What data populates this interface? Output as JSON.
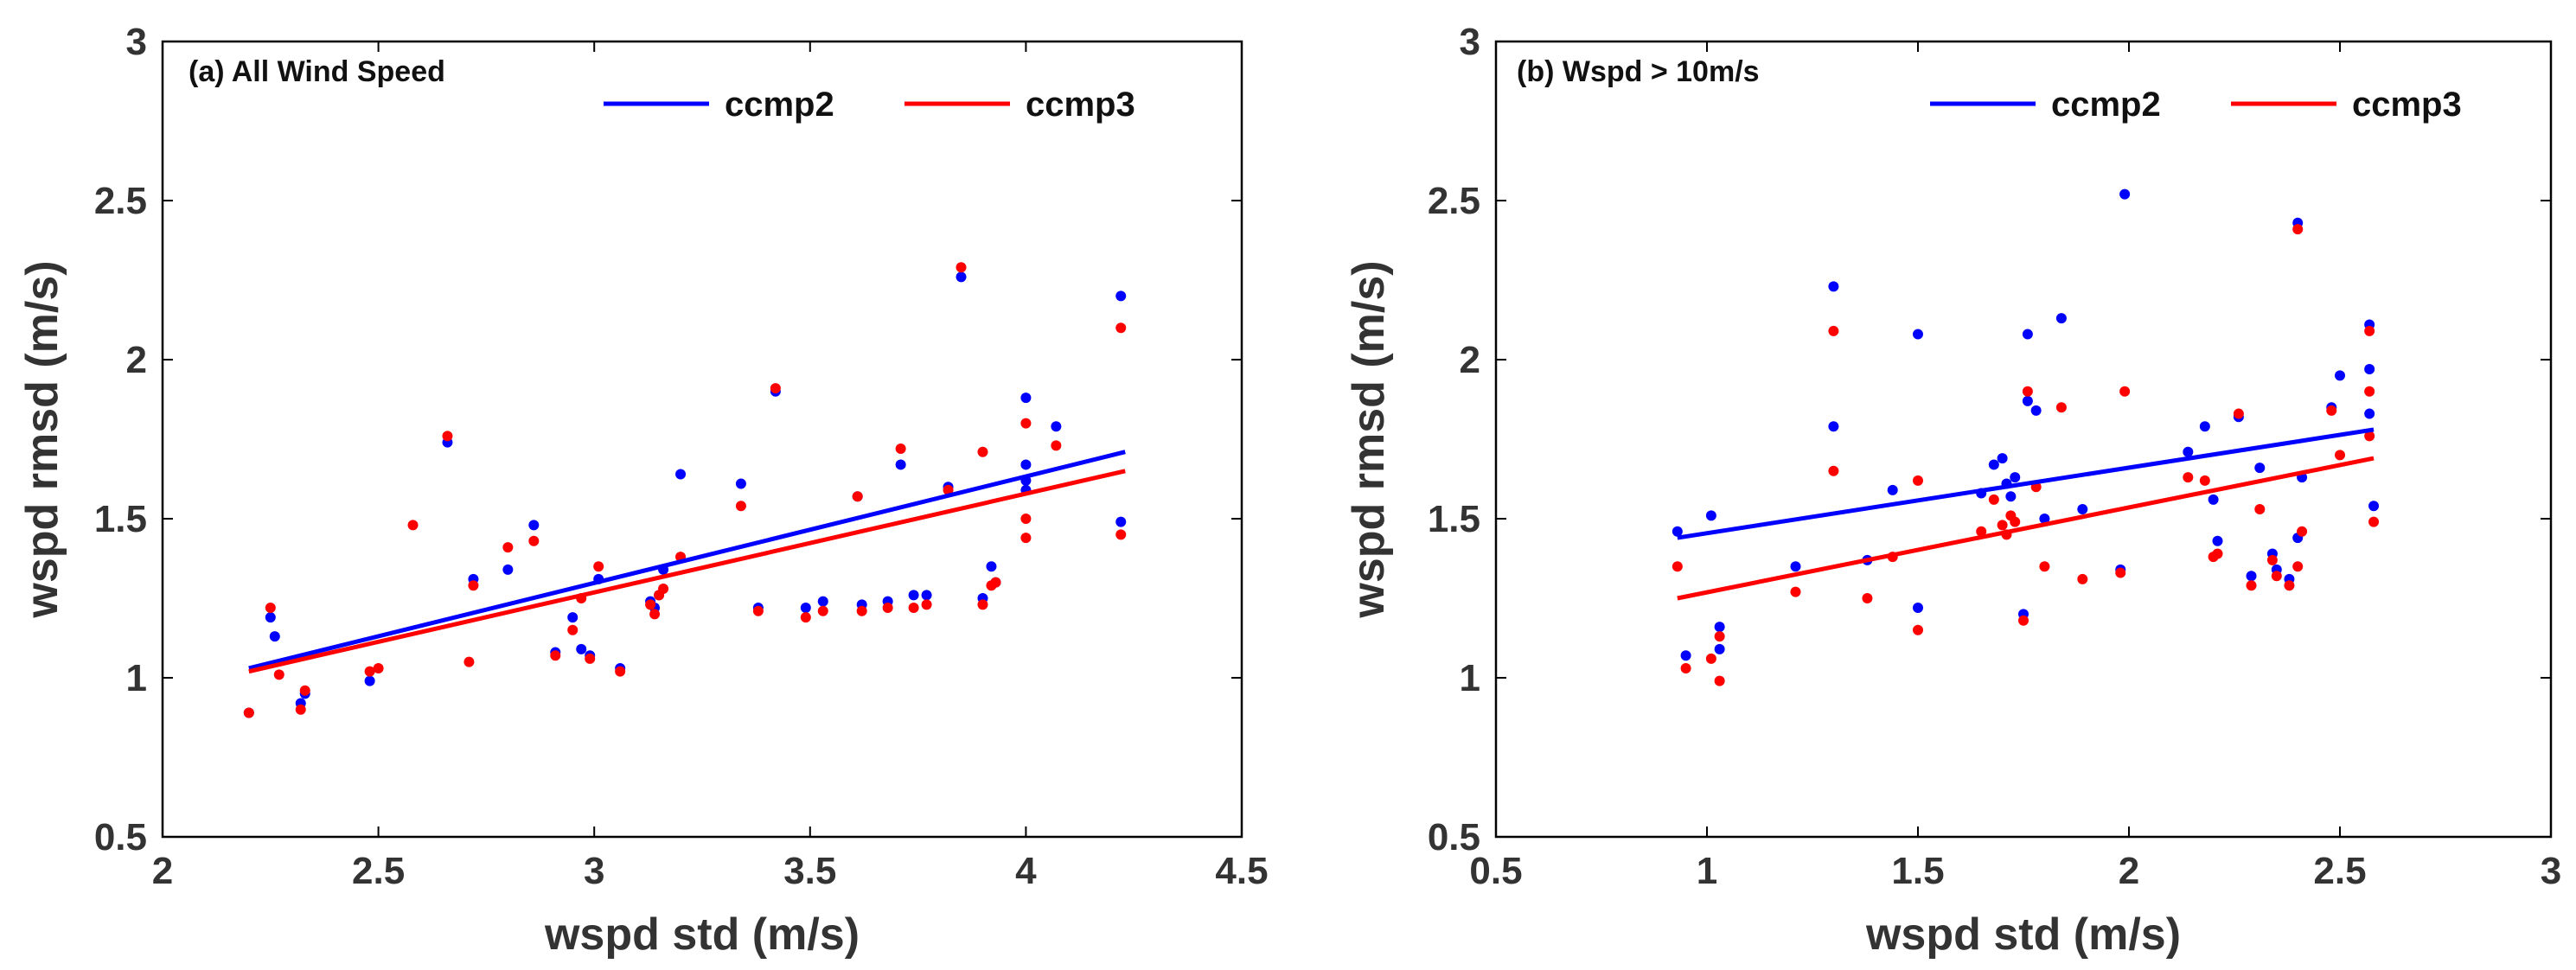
{
  "chart_data": [
    {
      "type": "scatter",
      "title": "",
      "panel_tag": "(a) All Wind Speed",
      "xlabel": "wspd std (m/s)",
      "ylabel": "wspd rmsd (m/s)",
      "xlim": [
        2,
        4.5
      ],
      "ylim": [
        0.5,
        3
      ],
      "xticks": [
        2,
        2.5,
        3,
        3.5,
        4,
        4.5
      ],
      "yticks": [
        0.5,
        1,
        1.5,
        2,
        2.5,
        3
      ],
      "xtick_labels": [
        "2",
        "2.5",
        "3",
        "3.5",
        "4",
        "4.5"
      ],
      "ytick_labels": [
        "0.5",
        "1",
        "1.5",
        "2",
        "2.5",
        "3"
      ],
      "grid": false,
      "legend_position": "top-right",
      "series": [
        {
          "name": "ccmp2",
          "color": "#0000ff",
          "x": [
            2.2,
            2.25,
            2.26,
            2.32,
            2.33,
            2.48,
            2.66,
            2.72,
            2.8,
            2.86,
            2.91,
            2.95,
            2.97,
            2.99,
            3.01,
            3.06,
            3.13,
            3.14,
            3.15,
            3.16,
            3.2,
            3.34,
            3.38,
            3.42,
            3.49,
            3.53,
            3.61,
            3.62,
            3.68,
            3.71,
            3.74,
            3.77,
            3.82,
            3.85,
            3.9,
            3.92,
            3.93,
            4.0,
            4.0,
            4.0,
            4.0,
            4.07,
            4.22,
            4.22
          ],
          "y": [
            0.89,
            1.19,
            1.13,
            0.92,
            0.95,
            0.99,
            1.74,
            1.31,
            1.34,
            1.48,
            1.08,
            1.19,
            1.09,
            1.07,
            1.31,
            1.03,
            1.24,
            1.22,
            1.26,
            1.34,
            1.64,
            1.61,
            1.22,
            1.9,
            1.22,
            1.24,
            1.57,
            1.23,
            1.24,
            1.67,
            1.26,
            1.26,
            1.6,
            2.26,
            1.25,
            1.35,
            1.3,
            1.88,
            1.67,
            1.62,
            1.59,
            1.79,
            2.2,
            1.49
          ],
          "trend": {
            "x": [
              2.2,
              4.23
            ],
            "y": [
              1.03,
              1.71
            ]
          }
        },
        {
          "name": "ccmp3",
          "color": "#ff0000",
          "x": [
            2.2,
            2.25,
            2.27,
            2.32,
            2.33,
            2.48,
            2.5,
            2.58,
            2.66,
            2.71,
            2.72,
            2.8,
            2.86,
            2.91,
            2.95,
            2.97,
            2.99,
            3.01,
            3.06,
            3.13,
            3.14,
            3.15,
            3.16,
            3.2,
            3.34,
            3.38,
            3.42,
            3.49,
            3.53,
            3.61,
            3.62,
            3.68,
            3.71,
            3.74,
            3.77,
            3.82,
            3.85,
            3.9,
            3.9,
            3.92,
            3.93,
            4.0,
            4.0,
            4.0,
            4.07,
            4.22,
            4.22
          ],
          "y": [
            0.89,
            1.22,
            1.01,
            0.9,
            0.96,
            1.02,
            1.03,
            1.48,
            1.76,
            1.05,
            1.29,
            1.41,
            1.43,
            1.07,
            1.15,
            1.25,
            1.06,
            1.35,
            1.02,
            1.23,
            1.2,
            1.26,
            1.28,
            1.38,
            1.54,
            1.21,
            1.91,
            1.19,
            1.21,
            1.57,
            1.21,
            1.22,
            1.72,
            1.22,
            1.23,
            1.59,
            2.29,
            1.71,
            1.23,
            1.29,
            1.3,
            1.8,
            1.5,
            1.44,
            1.73,
            2.1,
            1.45
          ],
          "trend": {
            "x": [
              2.2,
              4.23
            ],
            "y": [
              1.02,
              1.65
            ]
          }
        }
      ]
    },
    {
      "type": "scatter",
      "title": "",
      "panel_tag": "(b) Wspd > 10m/s",
      "xlabel": "wspd std (m/s)",
      "ylabel": "wspd rmsd (m/s)",
      "xlim": [
        0.5,
        3
      ],
      "ylim": [
        0.5,
        3
      ],
      "xticks": [
        0.5,
        1,
        1.5,
        2,
        2.5,
        3
      ],
      "yticks": [
        0.5,
        1,
        1.5,
        2,
        2.5,
        3
      ],
      "xtick_labels": [
        "0.5",
        "1",
        "1.5",
        "2",
        "2.5",
        "3"
      ],
      "ytick_labels": [
        "0.5",
        "1",
        "1.5",
        "2",
        "2.5",
        "3"
      ],
      "grid": false,
      "legend_position": "top-right",
      "series": [
        {
          "name": "ccmp2",
          "color": "#0000ff",
          "x": [
            0.93,
            0.95,
            1.01,
            1.03,
            1.03,
            1.21,
            1.3,
            1.3,
            1.38,
            1.44,
            1.5,
            1.5,
            1.65,
            1.68,
            1.7,
            1.71,
            1.72,
            1.73,
            1.75,
            1.76,
            1.76,
            1.78,
            1.8,
            1.84,
            1.89,
            1.98,
            1.99,
            2.14,
            2.18,
            2.2,
            2.21,
            2.26,
            2.29,
            2.31,
            2.34,
            2.35,
            2.38,
            2.4,
            2.4,
            2.41,
            2.48,
            2.5,
            2.57,
            2.57,
            2.57,
            2.58
          ],
          "y": [
            1.46,
            1.07,
            1.51,
            1.09,
            1.16,
            1.35,
            2.23,
            1.79,
            1.37,
            1.59,
            2.08,
            1.22,
            1.58,
            1.67,
            1.69,
            1.61,
            1.57,
            1.63,
            1.2,
            1.87,
            2.08,
            1.84,
            1.5,
            2.13,
            1.53,
            1.34,
            2.52,
            1.71,
            1.79,
            1.56,
            1.43,
            1.82,
            1.32,
            1.66,
            1.39,
            1.34,
            1.31,
            2.43,
            1.44,
            1.63,
            1.85,
            1.95,
            2.11,
            1.97,
            1.83,
            1.54
          ],
          "trend": {
            "x": [
              0.93,
              2.58
            ],
            "y": [
              1.44,
              1.78
            ]
          }
        },
        {
          "name": "ccmp3",
          "color": "#ff0000",
          "x": [
            0.93,
            0.95,
            1.01,
            1.03,
            1.03,
            1.21,
            1.3,
            1.3,
            1.38,
            1.44,
            1.5,
            1.5,
            1.65,
            1.68,
            1.7,
            1.71,
            1.72,
            1.73,
            1.75,
            1.76,
            1.78,
            1.8,
            1.84,
            1.89,
            1.98,
            1.99,
            2.14,
            2.18,
            2.2,
            2.21,
            2.26,
            2.29,
            2.31,
            2.34,
            2.35,
            2.38,
            2.4,
            2.4,
            2.41,
            2.48,
            2.5,
            2.57,
            2.57,
            2.57,
            2.58
          ],
          "y": [
            1.35,
            1.03,
            1.06,
            0.99,
            1.13,
            1.27,
            2.09,
            1.65,
            1.25,
            1.38,
            1.62,
            1.15,
            1.46,
            1.56,
            1.48,
            1.45,
            1.51,
            1.49,
            1.18,
            1.9,
            1.6,
            1.35,
            1.85,
            1.31,
            1.33,
            1.9,
            1.63,
            1.62,
            1.38,
            1.39,
            1.83,
            1.29,
            1.53,
            1.37,
            1.32,
            1.29,
            2.41,
            1.35,
            1.46,
            1.84,
            1.7,
            2.09,
            1.9,
            1.76,
            1.49
          ],
          "trend": {
            "x": [
              0.93,
              2.58
            ],
            "y": [
              1.25,
              1.69
            ]
          }
        }
      ]
    }
  ]
}
